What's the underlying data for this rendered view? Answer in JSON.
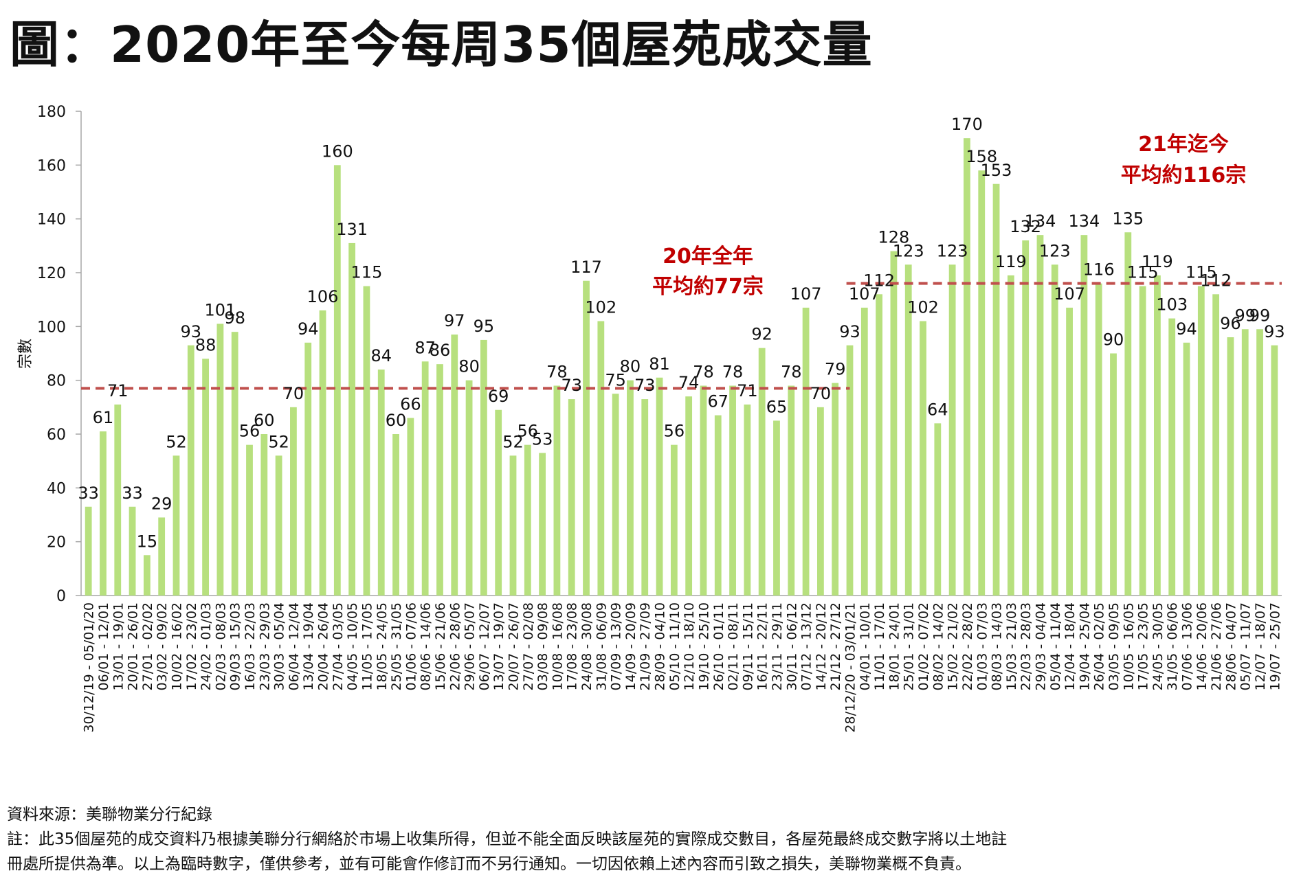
{
  "title": "圖：2020年至今每周35個屋苑成交量",
  "footer": {
    "source": "資料來源：美聯物業分行紀錄",
    "note_line1": "註：此35個屋苑的成交資料乃根據美聯分行網絡於市場上收集所得，但並不能全面反映該屋苑的實際成交數目，各屋苑最終成交數字將以土地註",
    "note_line2": "冊處所提供為準。以上為臨時數字，僅供參考，並有可能會作修訂而不另行通知。一切因依賴上述內容而引致之損失，美聯物業概不負責。"
  },
  "colors": {
    "bar": "#b7e07e",
    "average_line": "#c0504d",
    "annotation": "#c00000",
    "axis": "#a6a6a6"
  },
  "chart_data": {
    "type": "bar",
    "ylabel": "宗數",
    "ylim": [
      0,
      180
    ],
    "yticks": [
      0,
      20,
      40,
      60,
      80,
      100,
      120,
      140,
      160,
      180
    ],
    "grid": false,
    "categories": [
      "30/12/19 - 05/01/20",
      "06/01 - 12/01",
      "13/01 - 19/01",
      "20/01 - 26/01",
      "27/01 - 02/02",
      "03/02 - 09/02",
      "10/02 - 16/02",
      "17/02 - 23/02",
      "24/02 - 01/03",
      "02/03 - 08/03",
      "09/03 - 15/03",
      "16/03 - 22/03",
      "23/03 - 29/03",
      "30/03 - 05/04",
      "06/04 - 12/04",
      "13/04 - 19/04",
      "20/04 - 26/04",
      "27/04 - 03/05",
      "04/05 - 10/05",
      "11/05 - 17/05",
      "18/05 - 24/05",
      "25/05 - 31/05",
      "01/06 - 07/06",
      "08/06 - 14/06",
      "15/06 - 21/06",
      "22/06 - 28/06",
      "29/06 - 05/07",
      "06/07 - 12/07",
      "13/07 - 19/07",
      "20/07 - 26/07",
      "27/07 - 02/08",
      "03/08 - 09/08",
      "10/08 - 16/08",
      "17/08 - 23/08",
      "24/08 - 30/08",
      "31/08 - 06/09",
      "07/09 - 13/09",
      "14/09 - 20/09",
      "21/09 - 27/09",
      "28/09 - 04/10",
      "05/10 - 11/10",
      "12/10 - 18/10",
      "19/10 - 25/10",
      "26/10 - 01/11",
      "02/11 - 08/11",
      "09/11 - 15/11",
      "16/11 - 22/11",
      "23/11 - 29/11",
      "30/11 - 06/12",
      "07/12 - 13/12",
      "14/12 - 20/12",
      "21/12 - 27/12",
      "28/12/20 - 03/01/21",
      "04/01 - 10/01",
      "11/01 - 17/01",
      "18/01 - 24/01",
      "25/01 - 31/01",
      "01/02 - 07/02",
      "08/02 - 14/02",
      "15/02 - 21/02",
      "22/02 - 28/02",
      "01/03 - 07/03",
      "08/03 - 14/03",
      "15/03 - 21/03",
      "22/03 - 28/03",
      "29/03 - 04/04",
      "05/04 - 11/04",
      "12/04 - 18/04",
      "19/04 - 25/04",
      "26/04 - 02/05",
      "03/05 - 09/05",
      "10/05 - 16/05",
      "17/05 - 23/05",
      "24/05 - 30/05",
      "31/05 - 06/06",
      "07/06 - 13/06",
      "14/06 - 20/06",
      "21/06 - 27/06",
      "28/06 - 04/07",
      "05/07 - 11/07",
      "12/07 - 18/07",
      "19/07 - 25/07"
    ],
    "values": [
      33,
      61,
      71,
      33,
      15,
      29,
      52,
      93,
      88,
      101,
      98,
      56,
      60,
      52,
      70,
      94,
      106,
      160,
      131,
      115,
      84,
      60,
      66,
      87,
      86,
      97,
      80,
      95,
      69,
      52,
      56,
      53,
      78,
      73,
      117,
      102,
      75,
      80,
      73,
      81,
      56,
      74,
      78,
      67,
      78,
      71,
      92,
      65,
      78,
      107,
      70,
      79,
      93,
      107,
      112,
      128,
      123,
      102,
      64,
      123,
      170,
      158,
      153,
      119,
      132,
      134,
      123,
      107,
      134,
      116,
      90,
      135,
      115,
      119,
      103,
      94,
      115,
      112,
      96,
      99,
      99,
      93
    ],
    "averages": [
      {
        "value": 77,
        "from_index": 0,
        "to_index": 52,
        "label_line1": "20年全年",
        "label_line2": "平均約77宗"
      },
      {
        "value": 116,
        "from_index": 52,
        "to_index": 81,
        "label_line1": "21年迄今",
        "label_line2": "平均約116宗"
      }
    ]
  }
}
